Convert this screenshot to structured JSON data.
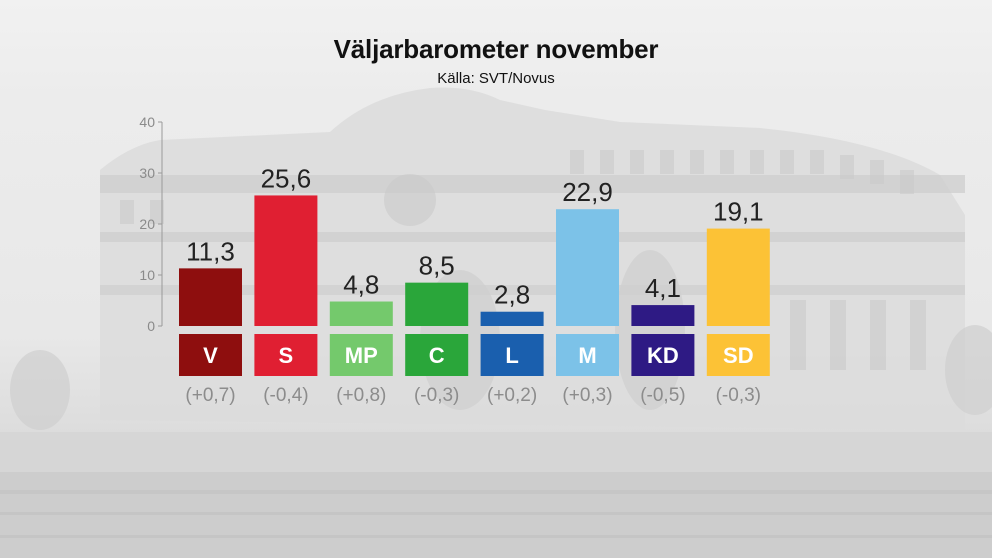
{
  "chart_data": {
    "type": "bar",
    "title": "Väljarbarometer november",
    "subtitle": "Källa: SVT/Novus",
    "ylim": [
      0,
      40
    ],
    "yticks": [
      0,
      10,
      20,
      30,
      40
    ],
    "categories": [
      "V",
      "S",
      "MP",
      "C",
      "L",
      "M",
      "KD",
      "SD"
    ],
    "values": [
      11.3,
      25.6,
      4.8,
      8.5,
      2.8,
      22.9,
      4.1,
      19.1
    ],
    "value_labels": [
      "11,3",
      "25,6",
      "4,8",
      "8,5",
      "2,8",
      "22,9",
      "4,1",
      "19,1"
    ],
    "changes": [
      "(+0,7)",
      "(-0,4)",
      "(+0,8)",
      "(-0,3)",
      "(+0,2)",
      "(+0,3)",
      "(-0,5)",
      "(-0,3)"
    ],
    "colors": [
      "#8e0e0e",
      "#e01f32",
      "#74c96c",
      "#2aa63a",
      "#1a5fae",
      "#7cc2e8",
      "#2e1a84",
      "#fcc236"
    ],
    "grid": false
  }
}
